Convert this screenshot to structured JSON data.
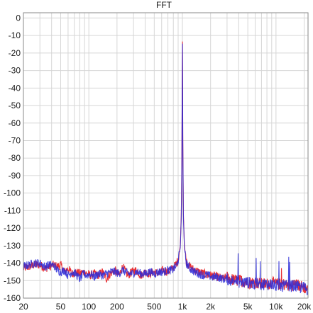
{
  "chart_data": {
    "type": "line",
    "title": "FFT",
    "xlabel": "",
    "ylabel": "",
    "x_scale": "log",
    "xlim": [
      20,
      22000
    ],
    "ylim": [
      -160,
      3
    ],
    "x_ticks": [
      {
        "value": 20,
        "label": "20"
      },
      {
        "value": 50,
        "label": "50"
      },
      {
        "value": 100,
        "label": "100"
      },
      {
        "value": 200,
        "label": "200"
      },
      {
        "value": 500,
        "label": "500"
      },
      {
        "value": 1000,
        "label": "1k"
      },
      {
        "value": 2000,
        "label": "2k"
      },
      {
        "value": 5000,
        "label": "5k"
      },
      {
        "value": 10000,
        "label": "10k"
      },
      {
        "value": 20000,
        "label": "20k"
      }
    ],
    "y_ticks": [
      0,
      -10,
      -20,
      -30,
      -40,
      -50,
      -60,
      -70,
      -80,
      -90,
      -100,
      -110,
      -120,
      -130,
      -140,
      -150,
      -160
    ],
    "grid": true,
    "legend": "none",
    "colors": {
      "background": "#ffffff",
      "grid": "#d6d6d6",
      "frame": "#8a8a8a"
    },
    "series": [
      {
        "color": "#e8262a",
        "points": [
          [
            20,
            -143
          ],
          [
            23,
            -142
          ],
          [
            26,
            -141
          ],
          [
            30,
            -141
          ],
          [
            34,
            -143
          ],
          [
            38,
            -142
          ],
          [
            42,
            -141
          ],
          [
            46,
            -142
          ],
          [
            50,
            -141
          ],
          [
            55,
            -145
          ],
          [
            60,
            -143
          ],
          [
            66,
            -146
          ],
          [
            72,
            -145
          ],
          [
            80,
            -146
          ],
          [
            88,
            -145
          ],
          [
            95,
            -146
          ],
          [
            105,
            -147
          ],
          [
            115,
            -146
          ],
          [
            125,
            -147
          ],
          [
            140,
            -145
          ],
          [
            155,
            -149
          ],
          [
            170,
            -146
          ],
          [
            190,
            -144
          ],
          [
            210,
            -147
          ],
          [
            230,
            -142
          ],
          [
            260,
            -147
          ],
          [
            290,
            -145
          ],
          [
            320,
            -144
          ],
          [
            360,
            -147
          ],
          [
            400,
            -145
          ],
          [
            450,
            -146
          ],
          [
            500,
            -145
          ],
          [
            560,
            -146
          ],
          [
            620,
            -144
          ],
          [
            700,
            -145
          ],
          [
            780,
            -143
          ],
          [
            850,
            -141
          ],
          [
            900,
            -138
          ],
          [
            950,
            -130
          ],
          [
            975,
            -110
          ],
          [
            990,
            -70
          ],
          [
            1000,
            0
          ],
          [
            1010,
            -70
          ],
          [
            1025,
            -112
          ],
          [
            1050,
            -130
          ],
          [
            1100,
            -139
          ],
          [
            1200,
            -142
          ],
          [
            1350,
            -144
          ],
          [
            1500,
            -145
          ],
          [
            1700,
            -146
          ],
          [
            1900,
            -147
          ],
          [
            2100,
            -147
          ],
          [
            2400,
            -148
          ],
          [
            2700,
            -149
          ],
          [
            3000,
            -148
          ],
          [
            3300,
            -149
          ],
          [
            3700,
            -150
          ],
          [
            4200,
            -150
          ],
          [
            5000,
            -151
          ],
          [
            6000,
            -151
          ],
          [
            7000,
            -152
          ],
          [
            8000,
            -152
          ],
          [
            9000,
            -151
          ],
          [
            10000,
            -152
          ],
          [
            12000,
            -152
          ],
          [
            14000,
            -153
          ],
          [
            16000,
            -152
          ],
          [
            18000,
            -153
          ],
          [
            20000,
            -154
          ],
          [
            22000,
            -155
          ]
        ]
      },
      {
        "color": "#2b2bd8",
        "points": [
          [
            20,
            -142
          ],
          [
            23,
            -141
          ],
          [
            26,
            -140
          ],
          [
            30,
            -140
          ],
          [
            34,
            -142
          ],
          [
            38,
            -141
          ],
          [
            42,
            -141
          ],
          [
            46,
            -144
          ],
          [
            50,
            -145
          ],
          [
            55,
            -144
          ],
          [
            60,
            -147
          ],
          [
            66,
            -145
          ],
          [
            72,
            -146
          ],
          [
            80,
            -149
          ],
          [
            88,
            -146
          ],
          [
            95,
            -147
          ],
          [
            105,
            -146
          ],
          [
            115,
            -148
          ],
          [
            125,
            -146
          ],
          [
            140,
            -147
          ],
          [
            155,
            -146
          ],
          [
            170,
            -145
          ],
          [
            190,
            -145
          ],
          [
            210,
            -146
          ],
          [
            230,
            -144
          ],
          [
            260,
            -146
          ],
          [
            290,
            -146
          ],
          [
            320,
            -145
          ],
          [
            360,
            -146
          ],
          [
            400,
            -146
          ],
          [
            450,
            -145
          ],
          [
            500,
            -146
          ],
          [
            560,
            -145
          ],
          [
            620,
            -145
          ],
          [
            700,
            -144
          ],
          [
            780,
            -144
          ],
          [
            850,
            -142
          ],
          [
            900,
            -139
          ],
          [
            950,
            -131
          ],
          [
            975,
            -112
          ],
          [
            990,
            -72
          ],
          [
            1000,
            -1
          ],
          [
            1010,
            -72
          ],
          [
            1025,
            -114
          ],
          [
            1050,
            -131
          ],
          [
            1100,
            -140
          ],
          [
            1200,
            -143
          ],
          [
            1350,
            -145
          ],
          [
            1500,
            -146
          ],
          [
            1700,
            -147
          ],
          [
            1900,
            -147
          ],
          [
            2100,
            -148
          ],
          [
            2400,
            -148
          ],
          [
            2700,
            -149
          ],
          [
            3000,
            -149
          ],
          [
            3300,
            -150
          ],
          [
            3700,
            -150
          ],
          [
            4200,
            -151
          ],
          [
            5000,
            -151
          ],
          [
            6000,
            -152
          ],
          [
            7000,
            -152
          ],
          [
            8000,
            -152
          ],
          [
            9000,
            -152
          ],
          [
            10000,
            -153
          ],
          [
            12000,
            -153
          ],
          [
            14000,
            -153
          ],
          [
            16000,
            -153
          ],
          [
            18000,
            -154
          ],
          [
            20000,
            -154
          ],
          [
            22000,
            -155
          ]
        ]
      }
    ]
  }
}
